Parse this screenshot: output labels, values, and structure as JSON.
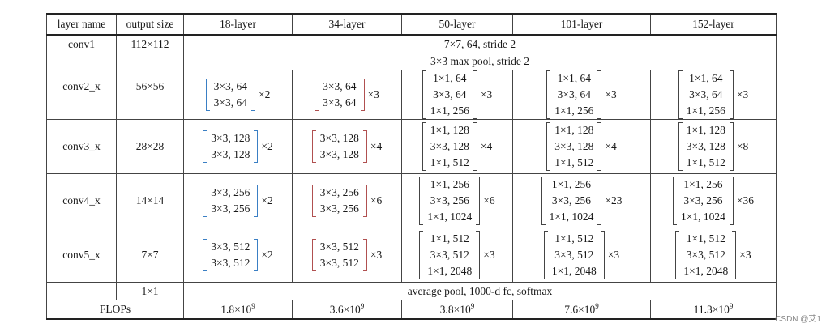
{
  "header": [
    "layer name",
    "output size",
    "18-layer",
    "34-layer",
    "50-layer",
    "101-layer",
    "152-layer"
  ],
  "conv1": {
    "name": "conv1",
    "size": "112×112",
    "spec": "7×7, 64, stride 2"
  },
  "pool": {
    "spec": "3×3 max pool, stride 2"
  },
  "conv2": {
    "name": "conv2_x",
    "size": "56×56",
    "cells": [
      {
        "lines": [
          "3×3, 64",
          "3×3, 64"
        ],
        "mult": "×2"
      },
      {
        "lines": [
          "3×3, 64",
          "3×3, 64"
        ],
        "mult": "×3"
      },
      {
        "lines": [
          "1×1, 64",
          "3×3, 64",
          "1×1, 256"
        ],
        "mult": "×3"
      },
      {
        "lines": [
          "1×1, 64",
          "3×3, 64",
          "1×1, 256"
        ],
        "mult": "×3"
      },
      {
        "lines": [
          "1×1, 64",
          "3×3, 64",
          "1×1, 256"
        ],
        "mult": "×3"
      }
    ]
  },
  "conv3": {
    "name": "conv3_x",
    "size": "28×28",
    "cells": [
      {
        "lines": [
          "3×3, 128",
          "3×3, 128"
        ],
        "mult": "×2"
      },
      {
        "lines": [
          "3×3, 128",
          "3×3, 128"
        ],
        "mult": "×4"
      },
      {
        "lines": [
          "1×1, 128",
          "3×3, 128",
          "1×1, 512"
        ],
        "mult": "×4"
      },
      {
        "lines": [
          "1×1, 128",
          "3×3, 128",
          "1×1, 512"
        ],
        "mult": "×4"
      },
      {
        "lines": [
          "1×1, 128",
          "3×3, 128",
          "1×1, 512"
        ],
        "mult": "×8"
      }
    ]
  },
  "conv4": {
    "name": "conv4_x",
    "size": "14×14",
    "cells": [
      {
        "lines": [
          "3×3, 256",
          "3×3, 256"
        ],
        "mult": "×2"
      },
      {
        "lines": [
          "3×3, 256",
          "3×3, 256"
        ],
        "mult": "×6"
      },
      {
        "lines": [
          "1×1, 256",
          "3×3, 256",
          "1×1, 1024"
        ],
        "mult": "×6"
      },
      {
        "lines": [
          "1×1, 256",
          "3×3, 256",
          "1×1, 1024"
        ],
        "mult": "×23"
      },
      {
        "lines": [
          "1×1, 256",
          "3×3, 256",
          "1×1, 1024"
        ],
        "mult": "×36"
      }
    ]
  },
  "conv5": {
    "name": "conv5_x",
    "size": "7×7",
    "cells": [
      {
        "lines": [
          "3×3, 512",
          "3×3, 512"
        ],
        "mult": "×2"
      },
      {
        "lines": [
          "3×3, 512",
          "3×3, 512"
        ],
        "mult": "×3"
      },
      {
        "lines": [
          "1×1, 512",
          "3×3, 512",
          "1×1, 2048"
        ],
        "mult": "×3"
      },
      {
        "lines": [
          "1×1, 512",
          "3×3, 512",
          "1×1, 2048"
        ],
        "mult": "×3"
      },
      {
        "lines": [
          "1×1, 512",
          "3×3, 512",
          "1×1, 2048"
        ],
        "mult": "×3"
      }
    ]
  },
  "avgpool": {
    "size": "1×1",
    "spec": "average pool, 1000-d fc, softmax"
  },
  "flops": {
    "label": "FLOPs",
    "values": [
      {
        "base": "1.8×10",
        "exp": "9"
      },
      {
        "base": "3.6×10",
        "exp": "9"
      },
      {
        "base": "3.8×10",
        "exp": "9"
      },
      {
        "base": "7.6×10",
        "exp": "9"
      },
      {
        "base": "11.3×10",
        "exp": "9"
      }
    ]
  },
  "bracket_colors": {
    "blue": "#3a7fc4",
    "red": "#b05050"
  },
  "watermark": "CSDN @艾1"
}
